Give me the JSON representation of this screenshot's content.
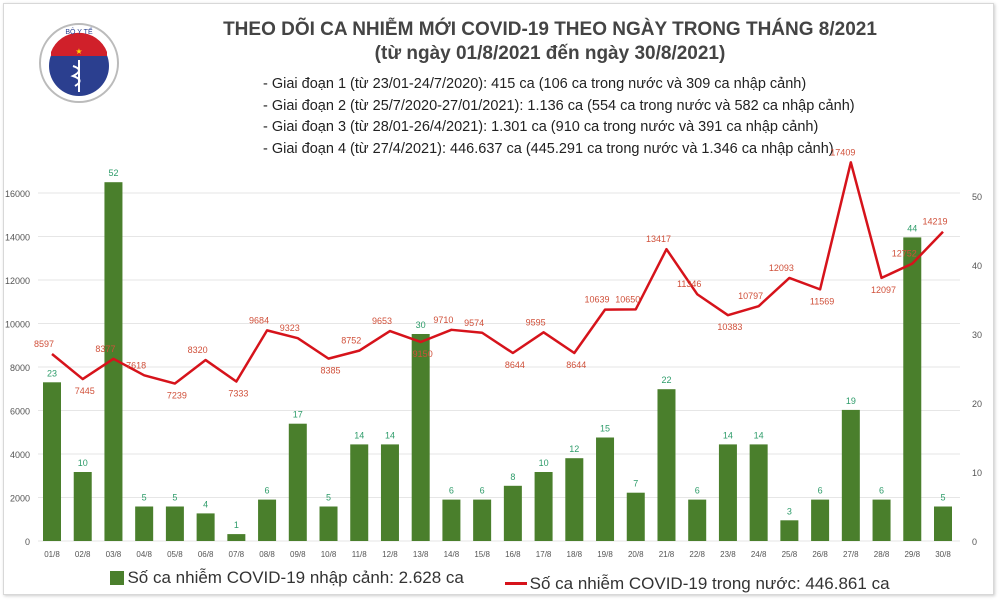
{
  "header": {
    "title": "THEO DÕI CA NHIỄM MỚI COVID-19 THEO NGÀY TRONG THÁNG 8/2021",
    "subtitle": "(từ ngày 01/8/2021 đến ngày 30/8/2021)",
    "notes": [
      "- Giai đoạn 1 (từ 23/01-24/7/2020): 415 ca (106 ca trong nước và 309 ca nhập cảnh)",
      "- Giai đoạn 2 (từ 25/7/2020-27/01/2021): 1.136 ca (554 ca trong nước và 582 ca nhập cảnh)",
      "- Giai đoạn 3 (từ 28/01-26/4/2021): 1.301 ca (910 ca trong nước và 391 ca nhập cảnh)",
      "- Giai đoạn 4 (từ 27/4/2021): 446.637 ca (445.291 ca trong nước và 1.346 ca nhập cảnh)"
    ],
    "logo_text": "BỘ Y TẾ · MINISTRY OF HEALTH"
  },
  "chart_data": {
    "type": "bar+line",
    "title": "THEO DÕI CA NHIỄM MỚI COVID-19 THEO NGÀY TRONG THÁNG 8/2021",
    "categories": [
      "01/8",
      "02/8",
      "03/8",
      "04/8",
      "05/8",
      "06/8",
      "07/8",
      "08/8",
      "09/8",
      "10/8",
      "11/8",
      "12/8",
      "13/8",
      "14/8",
      "15/8",
      "16/8",
      "17/8",
      "18/8",
      "19/8",
      "20/8",
      "21/8",
      "22/8",
      "23/8",
      "24/8",
      "25/8",
      "26/8",
      "27/8",
      "28/8",
      "29/8",
      "30/8"
    ],
    "series": [
      {
        "name": "Số ca nhiễm COVID-19 nhập cảnh: 2.628 ca",
        "type": "bar",
        "axis": "right",
        "color": "#4a7f2c",
        "values": [
          23,
          10,
          52,
          5,
          5,
          4,
          1,
          6,
          17,
          5,
          14,
          14,
          30,
          6,
          6,
          8,
          10,
          12,
          15,
          7,
          22,
          6,
          14,
          14,
          3,
          6,
          19,
          6,
          44,
          5
        ]
      },
      {
        "name": "Số ca nhiễm COVID-19 trong nước: 446.861 ca",
        "type": "line",
        "axis": "left",
        "color": "#d6131b",
        "values": [
          8597,
          7445,
          8377,
          7618,
          7239,
          8320,
          7333,
          9684,
          9323,
          8385,
          8752,
          9653,
          9150,
          9710,
          9574,
          8644,
          9595,
          8644,
          10639,
          10650,
          13417,
          11346,
          10383,
          10797,
          12093,
          11569,
          17409,
          12097,
          12752,
          14219
        ]
      }
    ],
    "left_axis": {
      "ticks": [
        0,
        2000,
        4000,
        6000,
        8000,
        10000,
        12000,
        14000,
        16000
      ]
    },
    "right_axis": {
      "ticks": [
        0,
        10,
        20,
        30,
        40,
        50
      ]
    },
    "grid": true,
    "legend": "bottom"
  }
}
